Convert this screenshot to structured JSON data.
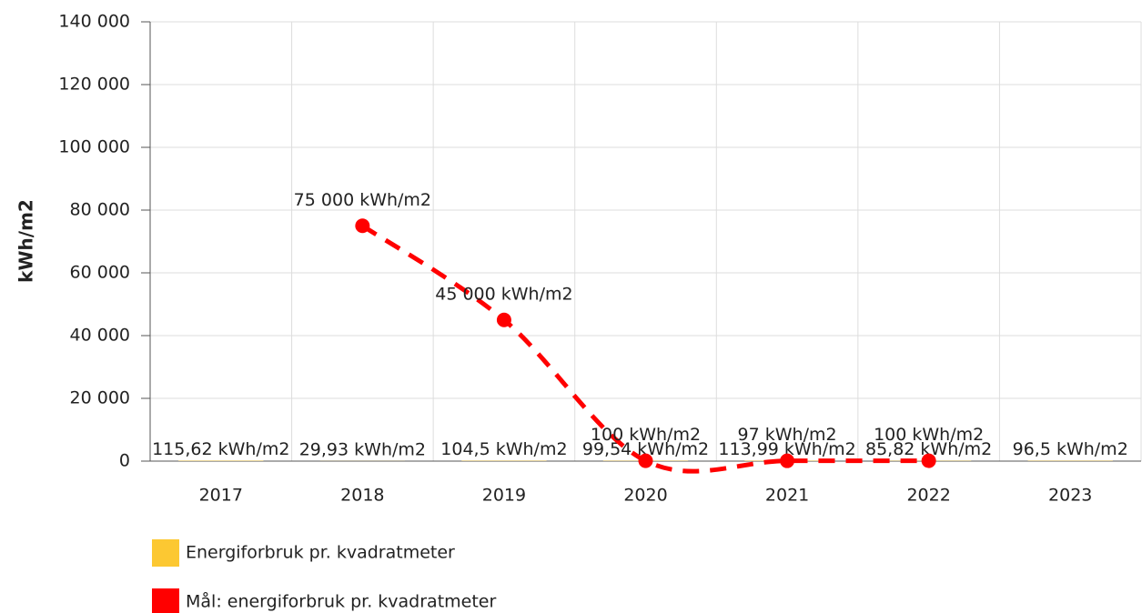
{
  "chart_data": {
    "type": "bar",
    "y_label": "kWh/m2",
    "categories": [
      "2017",
      "2018",
      "2019",
      "2020",
      "2021",
      "2022",
      "2023"
    ],
    "series": [
      {
        "name": "Energiforbruk pr. kvadratmeter",
        "type": "bar",
        "color": "#fcc832",
        "values": [
          115.62,
          29.93,
          104.5,
          99.54,
          113.99,
          85.82,
          96.5
        ],
        "value_labels": [
          "115,62 kWh/m2",
          "29,93 kWh/m2",
          "104,5 kWh/m2",
          "99,54 kWh/m2",
          "113,99 kWh/m2",
          "85,82 kWh/m2",
          "96,5 kWh/m2"
        ]
      },
      {
        "name": "Mål: energiforbruk pr. kvadratmeter",
        "type": "line",
        "color": "#ff0000",
        "values": [
          null,
          75000,
          45000,
          100,
          97,
          100,
          null
        ],
        "value_labels": [
          null,
          "75 000 kWh/m2",
          "45 000 kWh/m2",
          "100 kWh/m2",
          "97 kWh/m2",
          "100 kWh/m2",
          null
        ]
      }
    ],
    "ylim": [
      0,
      140000
    ],
    "yticks": [
      0,
      {
        "value": 20000,
        "label": "20 000"
      },
      {
        "value": 40000,
        "label": "40 000"
      },
      {
        "value": 60000,
        "label": "60 000"
      },
      {
        "value": 80000,
        "label": "80 000"
      },
      {
        "value": 100000,
        "label": "100 000"
      },
      {
        "value": 120000,
        "label": "120 000"
      },
      {
        "value": 140000,
        "label": "140 000"
      }
    ],
    "grid": true,
    "legend": "bottom"
  }
}
